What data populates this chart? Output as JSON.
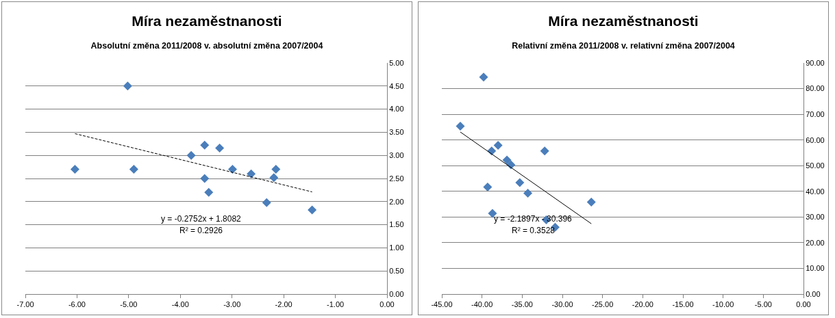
{
  "chart_data": [
    {
      "type": "scatter",
      "title": "Míra nezaměstnanosti",
      "subtitle": "Absolutní změna 2011/2008 v. absolutní změna 2007/2004",
      "marker": "diamond",
      "grid": "y",
      "legend": false,
      "xlim": [
        -7,
        0
      ],
      "xticks": [
        {
          "value": -7,
          "label": "-7.00"
        },
        {
          "value": -6,
          "label": "-6.00"
        },
        {
          "value": -5,
          "label": "-5.00"
        },
        {
          "value": -4,
          "label": "-4.00"
        },
        {
          "value": -3,
          "label": "-3.00"
        },
        {
          "value": -2,
          "label": "-2.00"
        },
        {
          "value": -1,
          "label": "-1.00"
        },
        {
          "value": 0,
          "label": "0.00"
        }
      ],
      "ylim": [
        0,
        5
      ],
      "yticks": [
        {
          "value": 0,
          "label": "0.00"
        },
        {
          "value": 0.5,
          "label": "0.50"
        },
        {
          "value": 1,
          "label": "1.00"
        },
        {
          "value": 1.5,
          "label": "1.50"
        },
        {
          "value": 2,
          "label": "2.00"
        },
        {
          "value": 2.5,
          "label": "2.50"
        },
        {
          "value": 3,
          "label": "3.00"
        },
        {
          "value": 3.5,
          "label": "3.50"
        },
        {
          "value": 4,
          "label": "4.00"
        },
        {
          "value": 4.5,
          "label": "4.50"
        },
        {
          "value": 5,
          "label": "5.00"
        }
      ],
      "series": [
        {
          "color": "#4a7ebb",
          "x": [
            -6.04,
            -5.02,
            -4.9,
            -3.79,
            -3.53,
            -3.24,
            -3.53,
            -3.45,
            -2.99,
            -2.63,
            -2.15,
            -2.19,
            -2.33,
            -1.45
          ],
          "values": [
            2.7,
            4.5,
            2.7,
            3.0,
            3.22,
            3.16,
            2.5,
            2.2,
            2.7,
            2.6,
            2.7,
            2.52,
            1.98,
            1.82
          ]
        },
        {
          "type": "line",
          "marker": "none",
          "line_style": "dashed",
          "color": "#000000",
          "x": [
            -6.04,
            -1.45
          ],
          "values": [
            3.47,
            2.21
          ]
        }
      ],
      "annotations": [
        "y = -0.2752x + 1.8082",
        "R² = 0.2926"
      ]
    },
    {
      "type": "scatter",
      "title": "Míra nezaměstnanosti",
      "subtitle": "Relativní změna 2011/2008 v. relativní změna 2007/2004",
      "marker": "diamond",
      "grid": "y",
      "legend": false,
      "xlim": [
        -45,
        0
      ],
      "xticks": [
        {
          "value": -45,
          "label": "-45.00"
        },
        {
          "value": -40,
          "label": "-40.00"
        },
        {
          "value": -35,
          "label": "-35.00"
        },
        {
          "value": -30,
          "label": "-30.00"
        },
        {
          "value": -25,
          "label": "-25.00"
        },
        {
          "value": -20,
          "label": "-20.00"
        },
        {
          "value": -15,
          "label": "-15.00"
        },
        {
          "value": -10,
          "label": "-10.00"
        },
        {
          "value": -5,
          "label": "-5.00"
        },
        {
          "value": 0,
          "label": "0.00"
        }
      ],
      "ylim": [
        0,
        90
      ],
      "yticks": [
        {
          "value": 0,
          "label": "0.00"
        },
        {
          "value": 10,
          "label": "10.00"
        },
        {
          "value": 20,
          "label": "20.00"
        },
        {
          "value": 30,
          "label": "30.00"
        },
        {
          "value": 40,
          "label": "40.00"
        },
        {
          "value": 50,
          "label": "50.00"
        },
        {
          "value": 60,
          "label": "60.00"
        },
        {
          "value": 70,
          "label": "70.00"
        },
        {
          "value": 80,
          "label": "80.00"
        },
        {
          "value": 90,
          "label": "90.00"
        }
      ],
      "series": [
        {
          "color": "#4a7ebb",
          "x": [
            -39.8,
            -42.7,
            -38.0,
            -38.8,
            -36.9,
            -36.4,
            -32.2,
            -39.3,
            -35.3,
            -34.3,
            -26.4,
            -38.7,
            -32.0,
            -30.9
          ],
          "values": [
            84.5,
            65.4,
            57.9,
            55.7,
            52.2,
            50.3,
            55.7,
            41.7,
            43.4,
            39.3,
            35.8,
            31.4,
            28.9,
            26.0
          ]
        },
        {
          "type": "line",
          "marker": "none",
          "line_style": "solid",
          "color": "#000000",
          "x": [
            -42.7,
            -26.4
          ],
          "values": [
            63.1,
            27.4
          ]
        }
      ],
      "annotations": [
        "y = -2.1897x - 30.396",
        "R² = 0.3528"
      ]
    }
  ]
}
